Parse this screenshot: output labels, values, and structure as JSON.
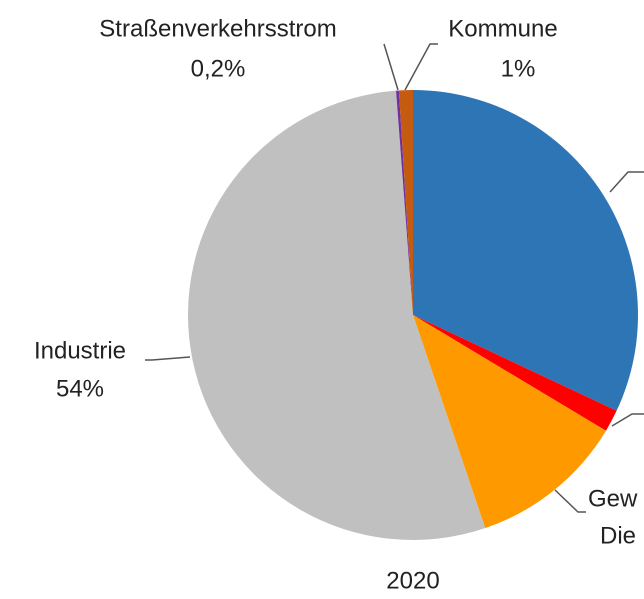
{
  "chart_data": {
    "type": "pie",
    "subtitle": "2020",
    "categories": [
      null,
      null,
      [
        "Gew",
        "Die"
      ],
      "Industrie",
      "Straßenverkehrsstrom",
      "Kommune"
    ],
    "values": [
      32,
      1.6,
      11.2,
      54,
      0.2,
      1
    ],
    "value_labels": [
      null,
      null,
      null,
      "54%",
      "0,2%",
      "1%"
    ],
    "colors": [
      "#2e75b6",
      "#ff0000",
      "#ff9900",
      "#c0c0c0",
      "#7030a0",
      "#c55a11"
    ]
  }
}
